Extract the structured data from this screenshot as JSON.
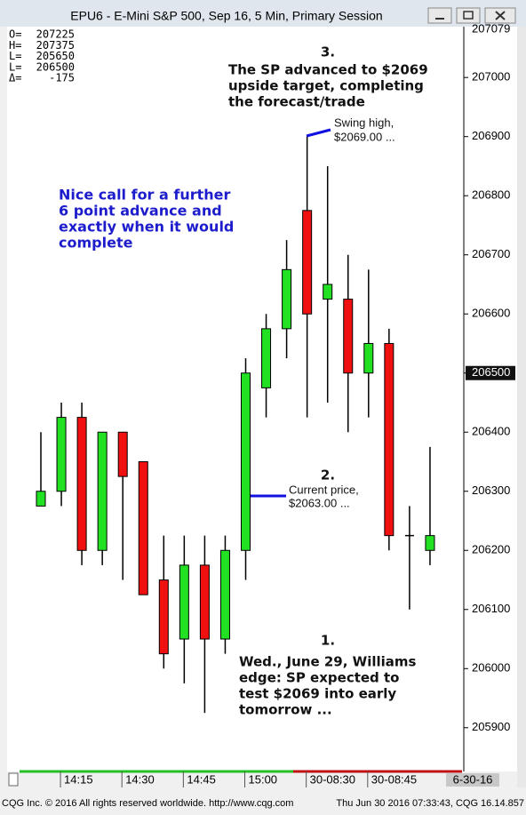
{
  "window_title": "EPU6 - E-Mini S&P 500, Sep 16, 5 Min, Primary Session",
  "chart_data": {
    "type": "candlestick",
    "categories": [
      null,
      "14:15",
      null,
      null,
      "14:30",
      null,
      null,
      "14:45",
      null,
      null,
      "15:00",
      null,
      null,
      "30-08:30",
      null,
      null,
      "30-08:45",
      null,
      null,
      null
    ],
    "open": [
      206275,
      206300,
      206425,
      206200,
      206400,
      206350,
      206150,
      206050,
      206175,
      206050,
      206200,
      206475,
      206575,
      206775,
      206625,
      206625,
      206500,
      206550,
      206225,
      206200
    ],
    "high": [
      206400,
      206450,
      206450,
      206400,
      206400,
      206350,
      206225,
      206225,
      206225,
      206225,
      206525,
      206600,
      206725,
      206900,
      206850,
      206700,
      206675,
      206575,
      206275,
      206375
    ],
    "low": [
      206275,
      206275,
      206175,
      206175,
      206150,
      206125,
      206000,
      205975,
      205925,
      206025,
      206150,
      206425,
      206525,
      206425,
      206450,
      206400,
      206425,
      206200,
      206100,
      206175
    ],
    "close": [
      206300,
      206425,
      206200,
      206400,
      206325,
      206125,
      206025,
      206175,
      206050,
      206200,
      206500,
      206575,
      206675,
      206600,
      206650,
      206500,
      206550,
      206225,
      206225,
      206225
    ],
    "up_color": "#22e022",
    "down_color": "#f01010",
    "ylim": [
      205826,
      207086
    ],
    "yticks": [
      207000,
      206900,
      206800,
      206700,
      206600,
      206500,
      206400,
      206300,
      206200,
      206100,
      206000,
      205900
    ],
    "highlight_tick": 206500,
    "top_cut_label": "207079",
    "date_label": "6-30-16",
    "info_box": [
      {
        "label": "O=",
        "value": 207225
      },
      {
        "label": "H=",
        "value": 207375
      },
      {
        "label": "L=",
        "value": 205650
      },
      {
        "label": "L=",
        "value": 206500
      },
      {
        "label": "Δ=",
        "value": -175
      }
    ],
    "annotations": {
      "note3": {
        "number": "3.",
        "lines": [
          "The SP advanced to $2069",
          "upside target, completing",
          "the forecast/trade"
        ]
      },
      "swing_high": [
        "Swing high,",
        "$2069.00 ..."
      ],
      "blue_note": [
        "Nice call for a further",
        "6 point advance and",
        "exactly when it would",
        "complete"
      ],
      "note2": {
        "number": "2.",
        "lines": [
          "Current price,",
          "$2063.00 ..."
        ]
      },
      "note1": {
        "number": "1.",
        "lines": [
          "Wed., June 29, Williams",
          "edge: SP expected to",
          "test $2069 into early",
          "tomorrow ..."
        ]
      }
    }
  },
  "footer": {
    "left": "CQG Inc. © 2016 All rights reserved worldwide. http://www.cqg.com",
    "right": "Thu Jun 30 2016 07:33:43, CQG 16.14.857"
  }
}
